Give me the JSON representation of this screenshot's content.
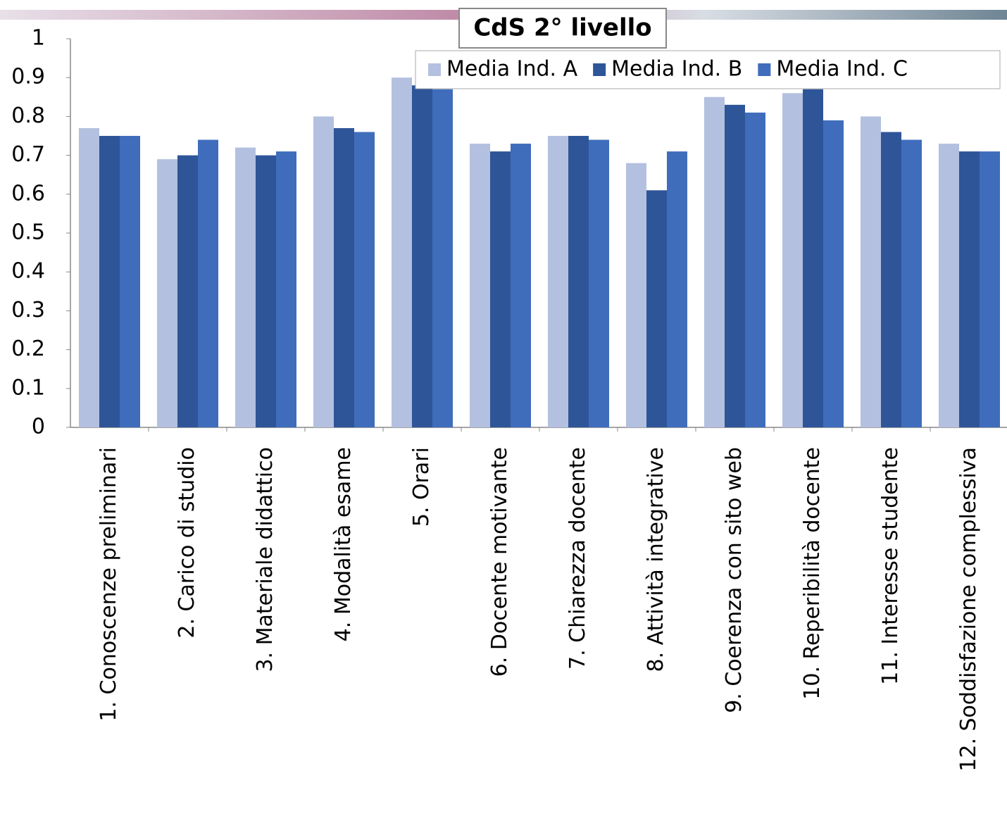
{
  "chart_data": {
    "type": "bar",
    "title": "CdS 2° livello",
    "categories": [
      "1. Conoscenze preliminari",
      "2. Carico di studio",
      "3. Materiale didattico",
      "4. Modalità esame",
      "5. Orari",
      "6. Docente motivante",
      "7. Chiarezza docente",
      "8. Attività integrative",
      "9. Coerenza con sito web",
      "10. Reperibilità docente",
      "11. Interesse studente",
      "12. Soddisfazione complessiva"
    ],
    "series": [
      {
        "name": "Media Ind. A",
        "color": "#b4c0e0",
        "values": [
          0.77,
          0.69,
          0.72,
          0.8,
          0.9,
          0.73,
          0.75,
          0.68,
          0.85,
          0.86,
          0.8,
          0.73
        ]
      },
      {
        "name": "Media Ind. B",
        "color": "#2e5597",
        "values": [
          0.75,
          0.7,
          0.7,
          0.77,
          0.88,
          0.71,
          0.75,
          0.61,
          0.83,
          0.87,
          0.76,
          0.71
        ]
      },
      {
        "name": "Media Ind. C",
        "color": "#3f6dbb",
        "values": [
          0.75,
          0.74,
          0.71,
          0.76,
          0.87,
          0.73,
          0.74,
          0.71,
          0.81,
          0.79,
          0.74,
          0.71
        ]
      }
    ],
    "ylim": [
      0,
      1
    ],
    "yticks": [
      0,
      0.1,
      0.2,
      0.3,
      0.4,
      0.5,
      0.6,
      0.7,
      0.8,
      0.9,
      1
    ],
    "legend": "top-right"
  }
}
